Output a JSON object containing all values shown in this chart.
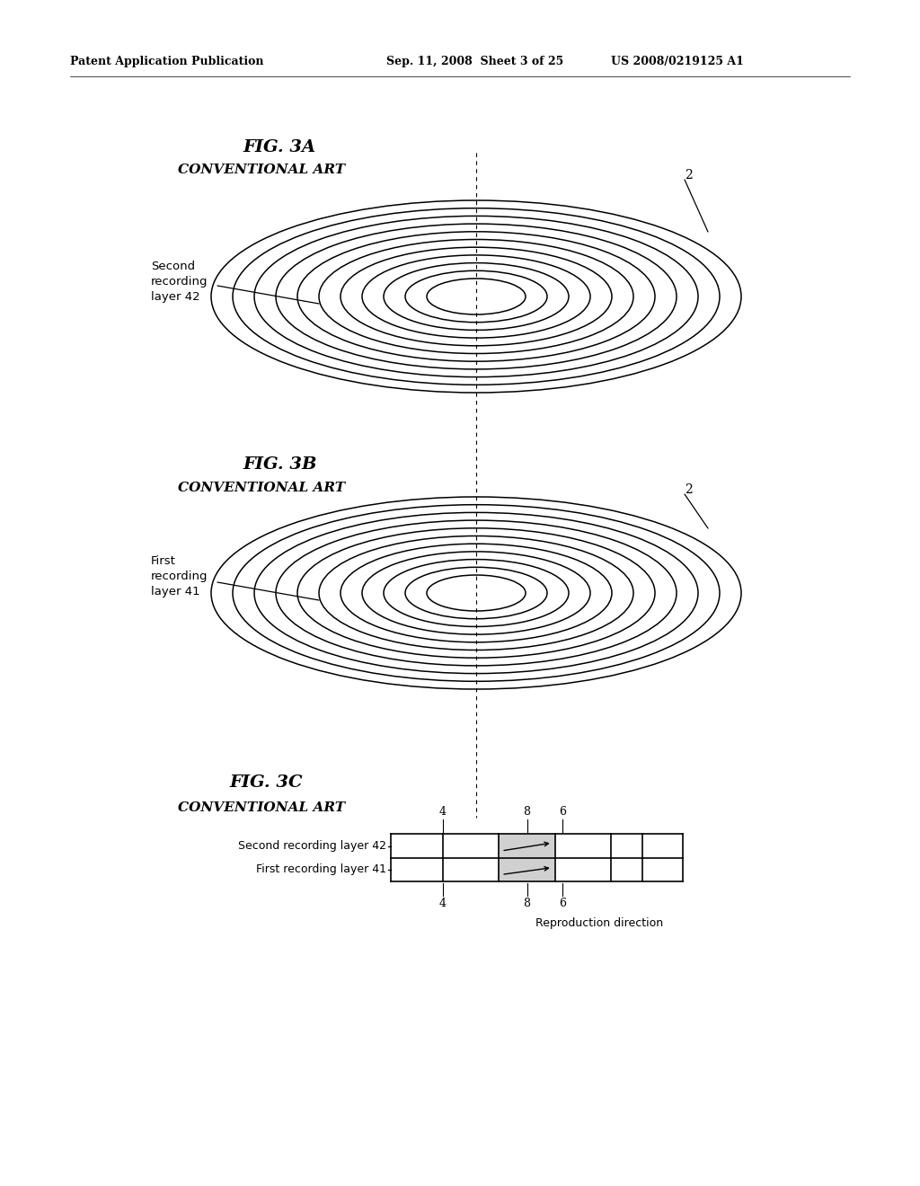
{
  "header_left": "Patent Application Publication",
  "header_mid": "Sep. 11, 2008  Sheet 3 of 25",
  "header_right": "US 2008/0219125 A1",
  "fig3a_title": "FIG. 3A",
  "fig3a_subtitle": "CONVENTIONAL ART",
  "fig3a_label1": "Second\nrecording\nlayer 42",
  "fig3b_title": "FIG. 3B",
  "fig3b_subtitle": "CONVENTIONAL ART",
  "fig3b_label1": "First\nrecording\nlayer 41",
  "fig3c_title": "FIG. 3C",
  "fig3c_subtitle": "CONVENTIONAL ART",
  "fig3c_label1": "Second recording layer 42",
  "fig3c_label2": "First recording layer 41",
  "fig3c_ref_top": [
    "4",
    "8",
    "6"
  ],
  "fig3c_ref_bot": [
    "4",
    "8",
    "6"
  ],
  "fig3c_repro": "Reproduction direction",
  "bg_color": "#ffffff",
  "line_color": "#000000"
}
